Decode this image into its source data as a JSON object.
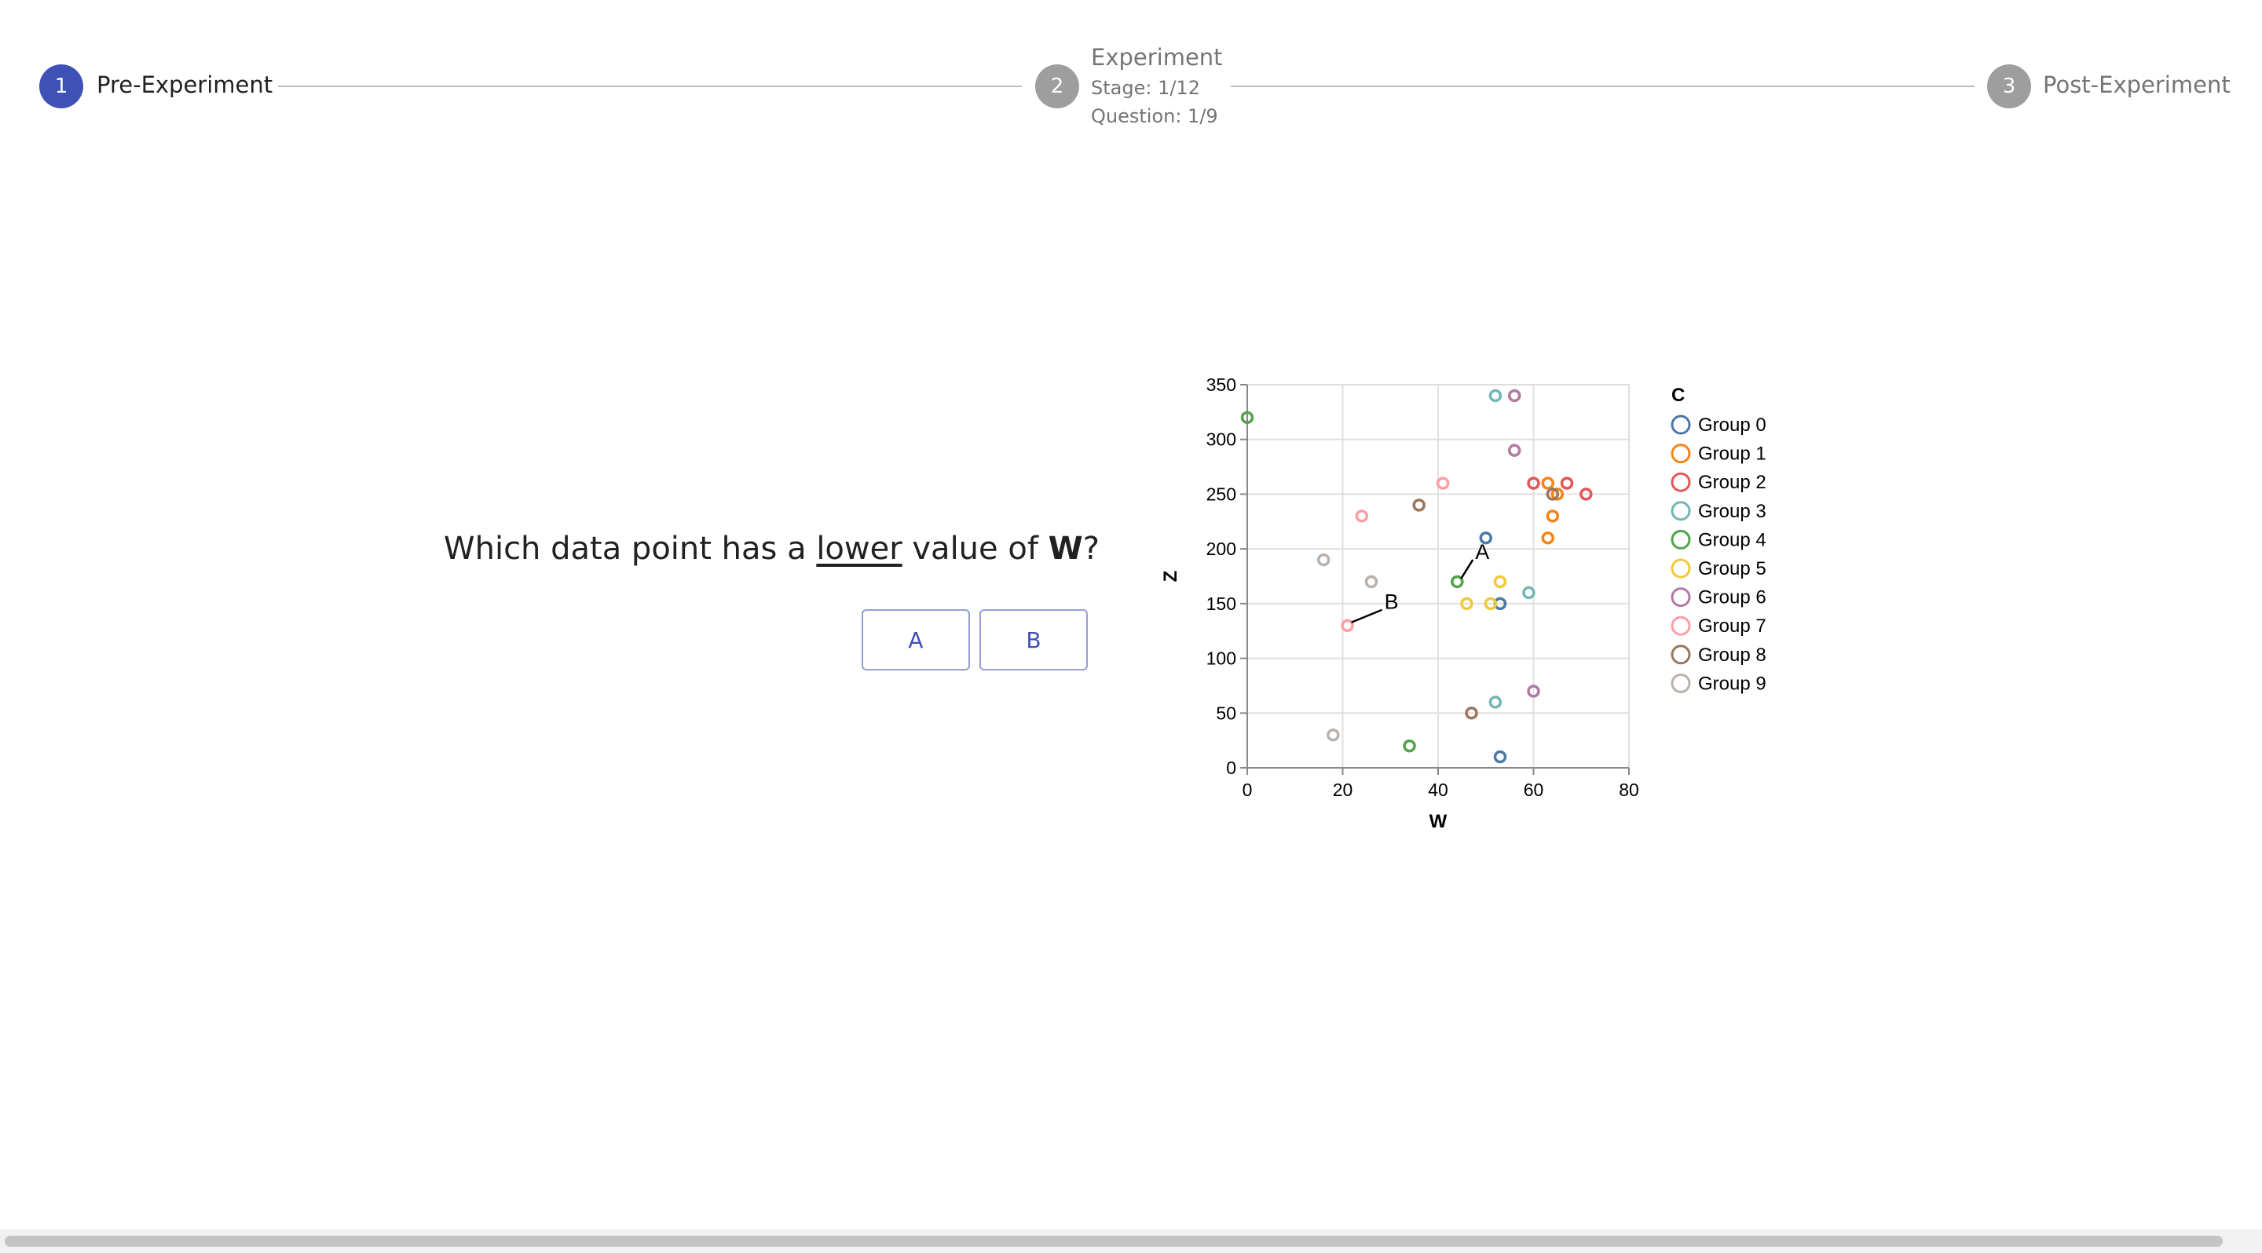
{
  "stepper": {
    "steps": [
      {
        "number": "1",
        "label": "Pre-Experiment",
        "state": "active"
      },
      {
        "number": "2",
        "label": "Experiment",
        "stage": "Stage: 1/12",
        "question": "Question: 1/9",
        "state": "inactive"
      },
      {
        "number": "3",
        "label": "Post-Experiment",
        "state": "inactive"
      }
    ],
    "active_color": "#3f51b5",
    "inactive_color": "#9e9e9e"
  },
  "question": {
    "prefix": "Which data point has a ",
    "emphasis": "lower",
    "middle": " value of ",
    "variable": "W",
    "suffix": "?"
  },
  "answers": {
    "a_label": "A",
    "b_label": "B"
  },
  "chart_data": {
    "type": "scatter",
    "title": "",
    "xlabel": "W",
    "ylabel": "Z",
    "xlim": [
      0,
      80
    ],
    "ylim": [
      0,
      350
    ],
    "x_ticks": [
      0,
      20,
      40,
      60,
      80
    ],
    "y_ticks": [
      0,
      50,
      100,
      150,
      200,
      250,
      300,
      350
    ],
    "grid": true,
    "legend_title": "C",
    "legend_position": "right",
    "series": [
      {
        "name": "Group 0",
        "color": "#4c78a8",
        "points": [
          [
            50,
            210
          ],
          [
            53,
            150
          ],
          [
            53,
            10
          ]
        ]
      },
      {
        "name": "Group 1",
        "color": "#f58518",
        "points": [
          [
            63,
            260
          ],
          [
            64,
            230
          ],
          [
            63,
            210
          ],
          [
            65,
            250
          ]
        ]
      },
      {
        "name": "Group 2",
        "color": "#e45756",
        "points": [
          [
            60,
            260
          ],
          [
            67,
            260
          ],
          [
            71,
            250
          ]
        ]
      },
      {
        "name": "Group 3",
        "color": "#72b7b2",
        "points": [
          [
            52,
            340
          ],
          [
            59,
            160
          ],
          [
            52,
            60
          ]
        ]
      },
      {
        "name": "Group 4",
        "color": "#54a24b",
        "points": [
          [
            0,
            320
          ],
          [
            44,
            170
          ],
          [
            34,
            20
          ]
        ]
      },
      {
        "name": "Group 5",
        "color": "#eeca3b",
        "points": [
          [
            46,
            150
          ],
          [
            51,
            150
          ],
          [
            53,
            170
          ]
        ]
      },
      {
        "name": "Group 6",
        "color": "#b279a2",
        "points": [
          [
            56,
            340
          ],
          [
            56,
            290
          ],
          [
            60,
            70
          ]
        ]
      },
      {
        "name": "Group 7",
        "color": "#ff9da6",
        "points": [
          [
            41,
            260
          ],
          [
            24,
            230
          ],
          [
            21,
            130
          ]
        ]
      },
      {
        "name": "Group 8",
        "color": "#9d755d",
        "points": [
          [
            36,
            240
          ],
          [
            64,
            250
          ],
          [
            47,
            50
          ]
        ]
      },
      {
        "name": "Group 9",
        "color": "#bab0ac",
        "points": [
          [
            16,
            190
          ],
          [
            26,
            170
          ],
          [
            18,
            30
          ]
        ]
      }
    ],
    "annotations": [
      {
        "label": "A",
        "x": 44,
        "y": 170
      },
      {
        "label": "B",
        "x": 21,
        "y": 130
      }
    ]
  }
}
